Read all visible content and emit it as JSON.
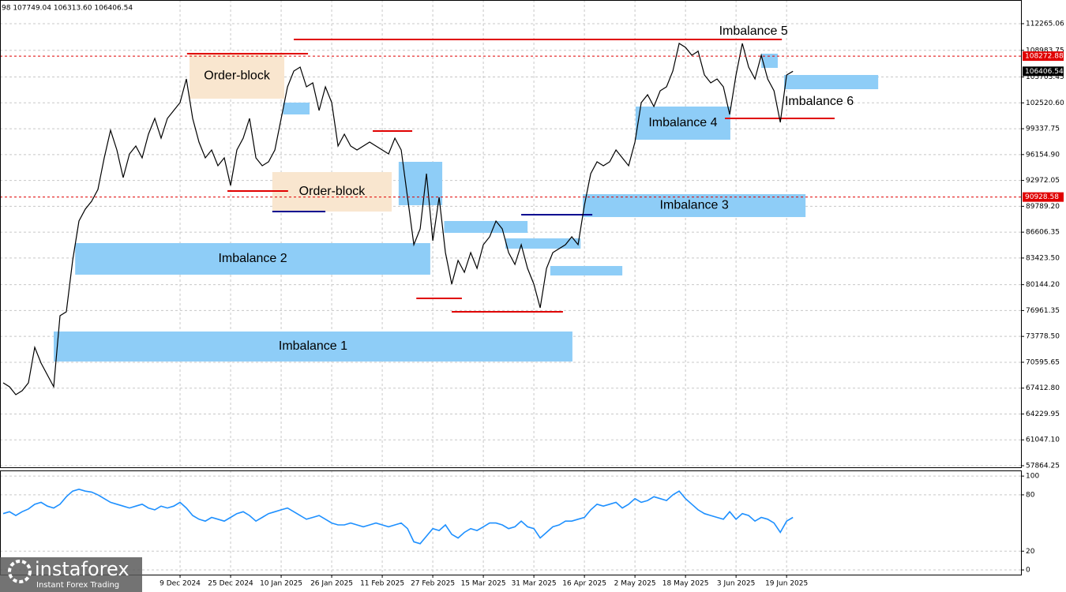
{
  "header": "98 107749.04 106313.60 106406.54",
  "logo": {
    "name": "instaforex",
    "tagline": "Instant Forex Trading"
  },
  "chart_data": [
    {
      "type": "line",
      "color": "#000000",
      "grid": true,
      "xlim": [
        -0.5,
        161.1
      ],
      "ylim": [
        57670,
        115179
      ],
      "xticks": [
        {
          "value": 28,
          "label": "9 Dec 2024"
        },
        {
          "value": 36,
          "label": "25 Dec 2024"
        },
        {
          "value": 44,
          "label": "10 Jan 2025"
        },
        {
          "value": 52,
          "label": "26 Jan 2025"
        },
        {
          "value": 60,
          "label": "11 Feb 2025"
        },
        {
          "value": 68,
          "label": "27 Feb 2025"
        },
        {
          "value": 76,
          "label": "15 Mar 2025"
        },
        {
          "value": 84,
          "label": "31 Mar 2025"
        },
        {
          "value": 92,
          "label": "16 Apr 2025"
        },
        {
          "value": 100,
          "label": "2 May 2025"
        },
        {
          "value": 108,
          "label": "18 May 2025"
        },
        {
          "value": 116,
          "label": "3 Jun 2025"
        },
        {
          "value": 124,
          "label": "19 Jun 2025"
        }
      ],
      "yticks": [
        {
          "value": 112265.06,
          "label": "112265.06"
        },
        {
          "value": 108983.75,
          "label": "108983.75"
        },
        {
          "value": 105703.45,
          "label": "105703.45"
        },
        {
          "value": 102520.6,
          "label": "102520.60"
        },
        {
          "value": 99337.75,
          "label": "99337.75"
        },
        {
          "value": 96154.9,
          "label": "96154.90"
        },
        {
          "value": 92972.05,
          "label": "92972.05"
        },
        {
          "value": 89789.2,
          "label": "89789.20"
        },
        {
          "value": 86606.35,
          "label": "86606.35"
        },
        {
          "value": 83423.5,
          "label": "83423.50"
        },
        {
          "value": 80144.2,
          "label": "80144.20"
        },
        {
          "value": 76961.35,
          "label": "76961.35"
        },
        {
          "value": 73778.5,
          "label": "73778.50"
        },
        {
          "value": 70595.65,
          "label": "70595.65"
        },
        {
          "value": 67412.8,
          "label": "67412.80"
        },
        {
          "value": 64229.95,
          "label": "64229.95"
        },
        {
          "value": 61047.1,
          "label": "61047.10"
        },
        {
          "value": 57864.25,
          "label": "57864.25"
        }
      ],
      "values": [
        68066,
        67580,
        66609,
        67095,
        68066,
        72437,
        70495,
        69037,
        67580,
        76323,
        76809,
        83123,
        87980,
        89437,
        90408,
        91865,
        95751,
        99151,
        96722,
        93322,
        96237,
        97208,
        95751,
        98665,
        100608,
        98179,
        100608,
        101579,
        102551,
        105465,
        100608,
        97694,
        95751,
        96722,
        94780,
        95751,
        92351,
        96722,
        98179,
        100608,
        95751,
        94780,
        95265,
        96722,
        100608,
        104494,
        106436,
        106922,
        104494,
        104979,
        101579,
        104494,
        102551,
        97208,
        98665,
        97208,
        96722,
        97208,
        97694,
        97208,
        96722,
        96237,
        98179,
        96722,
        90894,
        85066,
        87008,
        93808,
        85551,
        90894,
        84094,
        80209,
        83123,
        81666,
        84094,
        82151,
        85066,
        86037,
        87980,
        87008,
        84094,
        82637,
        85066,
        82151,
        80209,
        77294,
        82151,
        84094,
        84580,
        85066,
        86037,
        85066,
        89923,
        93808,
        95265,
        94780,
        95265,
        96722,
        95751,
        94780,
        97694,
        102551,
        103522,
        102065,
        104008,
        104494,
        106436,
        109836,
        109351,
        108379,
        108865,
        105951,
        104979,
        105465,
        104494,
        101094,
        105951,
        109836,
        106922,
        105465,
        108379,
        105465,
        104008,
        100122,
        105951,
        106406.54
      ],
      "zones": [
        {
          "label": "Imbalance 1",
          "x": [
            8,
            90.1
          ],
          "y": [
            70688,
            74380
          ],
          "color": "#8ecdf7"
        },
        {
          "label": "Imbalance 2",
          "x": [
            11.4,
            67.6
          ],
          "y": [
            81375,
            85260
          ],
          "color": "#8ecdf7"
        },
        {
          "label": "Imbalance 3",
          "x": [
            91.75,
            127
          ],
          "y": [
            88466,
            91282
          ],
          "color": "#8ecdf7"
        },
        {
          "label": "Imbalance 4",
          "x": [
            100.1,
            115.1
          ],
          "y": [
            97985,
            102065
          ],
          "color": "#8ecdf7"
        },
        {
          "label": "Imbalance 5",
          "x": [
            120,
            122.6
          ],
          "y": [
            106825,
            108573
          ],
          "color": "#8ecdf7"
        },
        {
          "label": "Imbalance 6",
          "x": [
            123.6,
            138.5
          ],
          "y": [
            104202,
            105951
          ],
          "color": "#8ecdf7"
        },
        {
          "label": "Order-block",
          "x": [
            29.5,
            44.5
          ],
          "y": [
            103037,
            108573
          ],
          "color": "#f9e6cf"
        },
        {
          "label": "Order-block",
          "x": [
            42.6,
            61.5
          ],
          "y": [
            89146,
            94002
          ],
          "color": "#f9e6cf"
        },
        {
          "x": [
            44.3,
            48.5
          ],
          "y": [
            101094,
            102551
          ],
          "color": "#8ecdf7"
        },
        {
          "x": [
            62.6,
            69.5
          ],
          "y": [
            89923,
            95265
          ],
          "color": "#8ecdf7"
        },
        {
          "x": [
            69.8,
            83
          ],
          "y": [
            86522,
            87980
          ],
          "color": "#8ecdf7"
        },
        {
          "x": [
            79.5,
            91.4
          ],
          "y": [
            84580,
            85843
          ],
          "color": "#8ecdf7"
        },
        {
          "x": [
            86.6,
            98
          ],
          "y": [
            81278,
            82443
          ],
          "color": "#8ecdf7"
        }
      ],
      "levels": [
        {
          "x": [
            46,
            123.25
          ],
          "value": 110322,
          "color": "#e00000"
        },
        {
          "x": [
            29.1,
            48.25
          ],
          "value": 108573,
          "color": "#e00000"
        },
        {
          "x": [
            35.5,
            45.1
          ],
          "value": 91671,
          "color": "#e00000"
        },
        {
          "x": [
            42.6,
            51
          ],
          "value": 89146,
          "color": "#000090"
        },
        {
          "x": [
            58.5,
            64.75
          ],
          "value": 99054,
          "color": "#e00000"
        },
        {
          "x": [
            65.4,
            72.6
          ],
          "value": 78460,
          "color": "#e00000"
        },
        {
          "x": [
            71,
            88.6
          ],
          "value": 76809,
          "color": "#e00000"
        },
        {
          "x": [
            82,
            93.25
          ],
          "value": 88757,
          "color": "#000090"
        },
        {
          "x": [
            114.25,
            131.6
          ],
          "value": 100608,
          "color": "#e00000"
        }
      ],
      "price_lines": [
        {
          "value": 108272.88,
          "label": "108272.88",
          "color": "#e00000",
          "dashed": true
        },
        {
          "value": 90928.58,
          "label": "90928.58",
          "color": "#e00000",
          "dashed": true
        },
        {
          "value": 106406.54,
          "label": "106406.54",
          "color": "#000000",
          "dashed": false
        }
      ]
    },
    {
      "type": "line",
      "color": "#1e90ff",
      "grid": true,
      "xlim": [
        -0.5,
        161.1
      ],
      "ylim": [
        -5,
        106
      ],
      "yticks": [
        100,
        80,
        20,
        0
      ],
      "values": [
        60,
        62,
        58,
        62,
        65,
        70,
        72,
        68,
        66,
        70,
        78,
        84,
        86,
        84,
        83,
        80,
        76,
        72,
        70,
        68,
        66,
        68,
        70,
        66,
        64,
        68,
        66,
        68,
        72,
        66,
        58,
        54,
        52,
        56,
        54,
        52,
        56,
        60,
        62,
        58,
        52,
        56,
        60,
        62,
        64,
        66,
        62,
        58,
        54,
        56,
        58,
        54,
        50,
        48,
        48,
        50,
        48,
        46,
        48,
        50,
        48,
        46,
        48,
        50,
        44,
        30,
        28,
        36,
        44,
        42,
        48,
        38,
        34,
        40,
        44,
        42,
        46,
        50,
        50,
        48,
        44,
        46,
        52,
        46,
        44,
        34,
        40,
        46,
        48,
        52,
        52,
        54,
        56,
        64,
        70,
        68,
        70,
        72,
        66,
        70,
        76,
        72,
        74,
        78,
        76,
        74,
        80,
        84,
        76,
        70,
        64,
        60,
        58,
        56,
        54,
        62,
        54,
        60,
        58,
        52,
        56,
        54,
        50,
        40,
        52,
        56
      ]
    }
  ]
}
